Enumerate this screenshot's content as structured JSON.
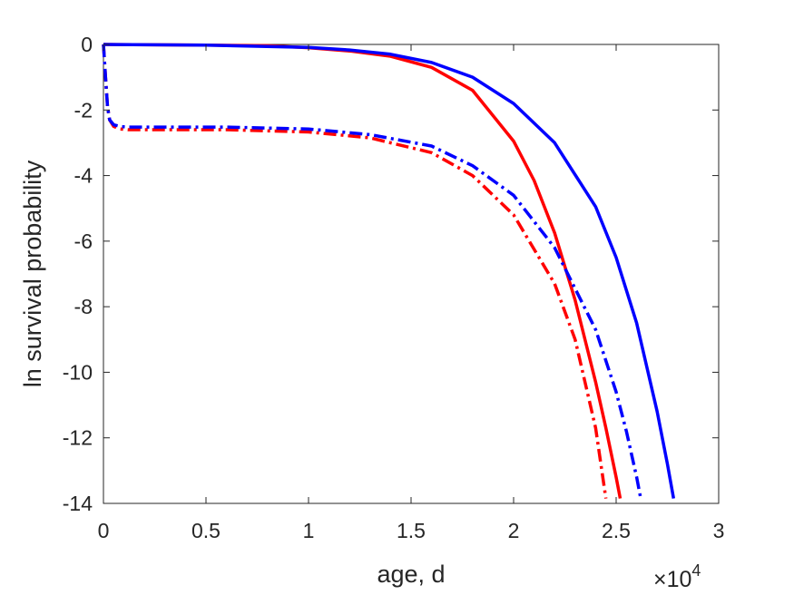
{
  "chart_data": {
    "type": "line",
    "title": "",
    "xlabel": "age, d",
    "ylabel": "ln survival probability",
    "xlim": [
      0,
      3
    ],
    "ylim": [
      -14,
      0
    ],
    "x_multiplier": {
      "base": "×10",
      "exponent": "4"
    },
    "xticks": [
      0,
      0.5,
      1,
      1.5,
      2,
      2.5,
      3
    ],
    "xtick_labels": [
      "0",
      "0.5",
      "1",
      "1.5",
      "2",
      "2.5",
      "3"
    ],
    "yticks": [
      0,
      -2,
      -4,
      -6,
      -8,
      -10,
      -12,
      -14
    ],
    "ytick_labels": [
      "0",
      "-2",
      "-4",
      "-6",
      "-8",
      "-10",
      "-12",
      "-14"
    ],
    "grid": false,
    "legend": "none",
    "series": [
      {
        "color": "#ff0000",
        "style": "solid",
        "x": [
          0,
          0.5,
          0.8,
          1.0,
          1.2,
          1.4,
          1.6,
          1.8,
          2.0,
          2.1,
          2.2,
          2.3,
          2.4,
          2.45,
          2.5,
          2.52
        ],
        "y": [
          0,
          -0.02,
          -0.04,
          -0.1,
          -0.2,
          -0.36,
          -0.7,
          -1.4,
          -2.95,
          -4.15,
          -5.75,
          -7.8,
          -10.3,
          -11.7,
          -13.2,
          -13.85
        ]
      },
      {
        "color": "#0000ff",
        "style": "solid",
        "x": [
          0,
          0.5,
          1.0,
          1.2,
          1.4,
          1.6,
          1.8,
          2.0,
          2.2,
          2.4,
          2.5,
          2.6,
          2.7,
          2.75,
          2.78
        ],
        "y": [
          0,
          -0.02,
          -0.09,
          -0.17,
          -0.3,
          -0.55,
          -1.0,
          -1.8,
          -3.0,
          -4.95,
          -6.5,
          -8.5,
          -11.2,
          -12.8,
          -13.85
        ]
      },
      {
        "color": "#ff0000",
        "style": "dashdot",
        "x": [
          0,
          0.01,
          0.02,
          0.03,
          0.05,
          0.08,
          0.12,
          0.3,
          0.6,
          1.0,
          1.3,
          1.6,
          1.8,
          2.0,
          2.2,
          2.3,
          2.4,
          2.45
        ],
        "y": [
          0,
          -1.0,
          -1.9,
          -2.3,
          -2.5,
          -2.58,
          -2.6,
          -2.6,
          -2.6,
          -2.67,
          -2.85,
          -3.3,
          -4.0,
          -5.2,
          -7.3,
          -9.0,
          -11.7,
          -13.85
        ]
      },
      {
        "color": "#0000ff",
        "style": "dashdot",
        "x": [
          0,
          0.01,
          0.02,
          0.03,
          0.05,
          0.08,
          0.12,
          0.3,
          0.6,
          1.0,
          1.3,
          1.6,
          1.8,
          2.0,
          2.2,
          2.4,
          2.5,
          2.55,
          2.6,
          2.62
        ],
        "y": [
          0,
          -1.0,
          -1.9,
          -2.3,
          -2.45,
          -2.5,
          -2.52,
          -2.52,
          -2.52,
          -2.58,
          -2.75,
          -3.1,
          -3.7,
          -4.6,
          -6.2,
          -8.7,
          -10.6,
          -11.8,
          -13.2,
          -13.85
        ]
      }
    ]
  }
}
